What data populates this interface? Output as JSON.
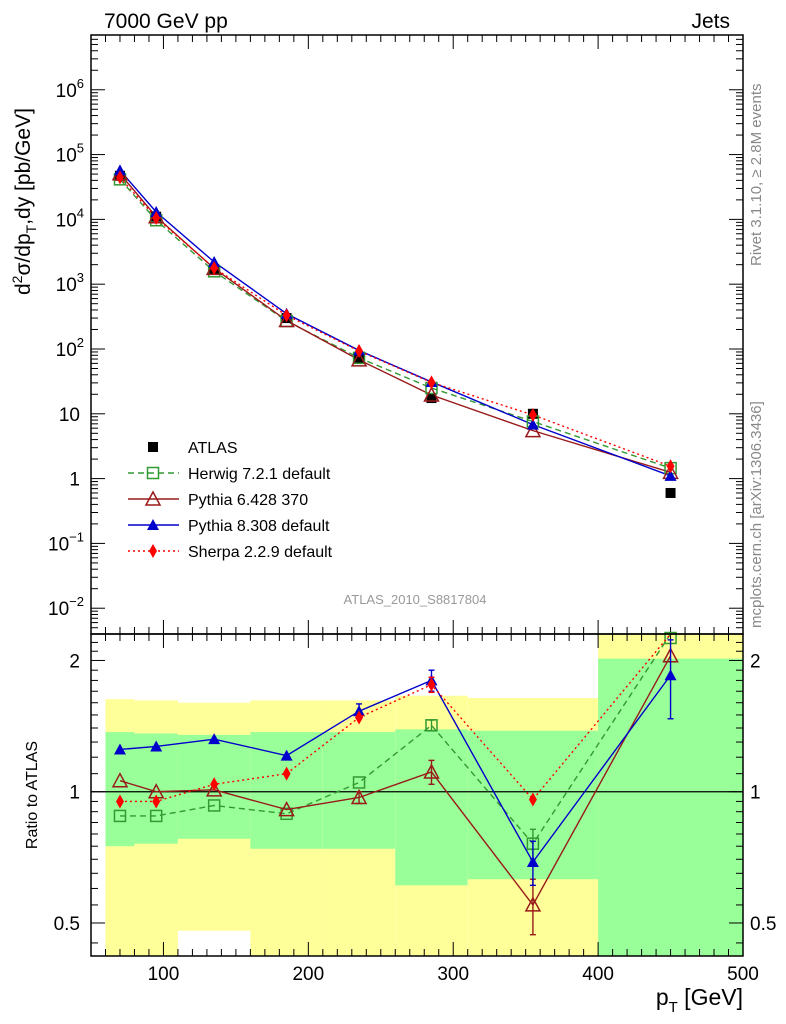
{
  "header": {
    "left_label": "7000 GeV pp",
    "right_label": "Jets"
  },
  "side_labels": {
    "rivet": "Rivet 3.1.10, ≥ 2.8M events",
    "mcplots": "mcplots.cern.ch [arXiv:1306.3436]"
  },
  "analysis_id": "ATLAS_2010_S8817804",
  "colors": {
    "atlas": "#000000",
    "herwig": "#339933",
    "pythia6": "#991a1a",
    "pythia8": "#0000cc",
    "sherpa": "#ff0000",
    "band_outer": "#ffff99",
    "band_inner": "#99ff99"
  },
  "chart_data": [
    {
      "type": "scatter",
      "panel": "main",
      "y_scale": "log",
      "ylabel_base": "d",
      "ylabel_sup": "2",
      "ylabel_rest": "σ/dp",
      "ylabel_sub": "T",
      "ylabel_tail": ",dy [pb/GeV]",
      "xlim": [
        50,
        500
      ],
      "ylim": [
        0.004,
        7000000
      ],
      "y_ticks": [
        {
          "value": 1000000,
          "base": "10",
          "exp": "6"
        },
        {
          "value": 100000,
          "base": "10",
          "exp": "5"
        },
        {
          "value": 10000,
          "base": "10",
          "exp": "4"
        },
        {
          "value": 1000,
          "base": "10",
          "exp": "3"
        },
        {
          "value": 100,
          "base": "10",
          "exp": "2"
        },
        {
          "value": 10,
          "base": "10",
          "exp": ""
        },
        {
          "value": 1,
          "base": "1",
          "exp": ""
        },
        {
          "value": 0.1,
          "base": "10",
          "exp": "−1"
        },
        {
          "value": 0.01,
          "base": "10",
          "exp": "−2"
        }
      ],
      "x": [
        70,
        95,
        135,
        185,
        235,
        285,
        355,
        450
      ],
      "series": [
        {
          "name": "ATLAS",
          "key": "atlas",
          "values": [
            47000,
            11000,
            1700,
            300,
            70,
            17.5,
            10,
            0.6
          ]
        },
        {
          "name": "Herwig 7.2.1 default",
          "key": "herwig",
          "values": [
            41500,
            9700,
            1580,
            270,
            73,
            25,
            7.6,
            1.45
          ]
        },
        {
          "name": "Pythia 6.428 370",
          "key": "pythia6",
          "values": [
            50500,
            11000,
            1750,
            275,
            68,
            19.5,
            5.5,
            1.25
          ]
        },
        {
          "name": "Pythia 8.308 default",
          "key": "pythia8",
          "values": [
            57000,
            13000,
            2200,
            350,
            95,
            31,
            6.8,
            1.1
          ]
        },
        {
          "name": "Sherpa 2.2.9 default",
          "key": "sherpa",
          "values": [
            44500,
            10500,
            1780,
            330,
            93,
            30.5,
            9.6,
            1.55
          ]
        }
      ]
    },
    {
      "type": "scatter",
      "panel": "ratio",
      "ylabel": "Ratio to ATLAS",
      "xlabel_base": "p",
      "xlabel_sub": "T",
      "xlabel_tail": " [GeV]",
      "y_scale": "log",
      "xlim": [
        50,
        500
      ],
      "ylim": [
        0.42,
        2.3
      ],
      "x_ticks": [
        100,
        200,
        300,
        400,
        500
      ],
      "y_ticks": [
        0.5,
        1,
        2
      ],
      "bins": [
        [
          60,
          80
        ],
        [
          80,
          110
        ],
        [
          110,
          160
        ],
        [
          160,
          210
        ],
        [
          210,
          260
        ],
        [
          260,
          310
        ],
        [
          310,
          400
        ],
        [
          400,
          500
        ]
      ],
      "band_outer": [
        [
          0.37,
          1.63
        ],
        [
          0.39,
          1.62
        ],
        [
          0.48,
          1.6
        ],
        [
          0.37,
          1.62
        ],
        [
          0.37,
          1.62
        ],
        [
          0.37,
          1.66
        ],
        [
          0.37,
          1.64
        ],
        [
          0.37,
          2.3
        ]
      ],
      "band_inner": [
        [
          0.75,
          1.37
        ],
        [
          0.76,
          1.36
        ],
        [
          0.78,
          1.35
        ],
        [
          0.74,
          1.37
        ],
        [
          0.74,
          1.37
        ],
        [
          0.61,
          1.39
        ],
        [
          0.63,
          1.38
        ],
        [
          0.37,
          2.02
        ]
      ],
      "x": [
        70,
        95,
        135,
        185,
        235,
        285,
        355,
        450
      ],
      "series": [
        {
          "name": "Herwig 7.2.1 default",
          "key": "herwig",
          "values": [
            0.88,
            0.88,
            0.93,
            0.89,
            1.05,
            1.42,
            0.76,
            2.3
          ],
          "errors": [
            0,
            0,
            0,
            0,
            0,
            0.04,
            0.06,
            0
          ]
        },
        {
          "name": "Pythia 6.428 370",
          "key": "pythia6",
          "values": [
            1.06,
            1.0,
            1.01,
            0.91,
            0.97,
            1.11,
            0.55,
            2.05
          ],
          "errors": [
            0,
            0,
            0,
            0,
            0.03,
            0.07,
            0.08,
            0
          ]
        },
        {
          "name": "Pythia 8.308 default",
          "key": "pythia8",
          "values": [
            1.25,
            1.27,
            1.32,
            1.21,
            1.53,
            1.8,
            0.69,
            1.85
          ],
          "errors": [
            0,
            0,
            0,
            0,
            0.06,
            0.1,
            0.08,
            0.38
          ]
        },
        {
          "name": "Sherpa 2.2.9 default",
          "key": "sherpa",
          "values": [
            0.95,
            0.95,
            1.04,
            1.1,
            1.48,
            1.76,
            0.96,
            2.3
          ],
          "errors": [
            0,
            0,
            0,
            0,
            0,
            0.07,
            0,
            0
          ]
        }
      ]
    }
  ]
}
